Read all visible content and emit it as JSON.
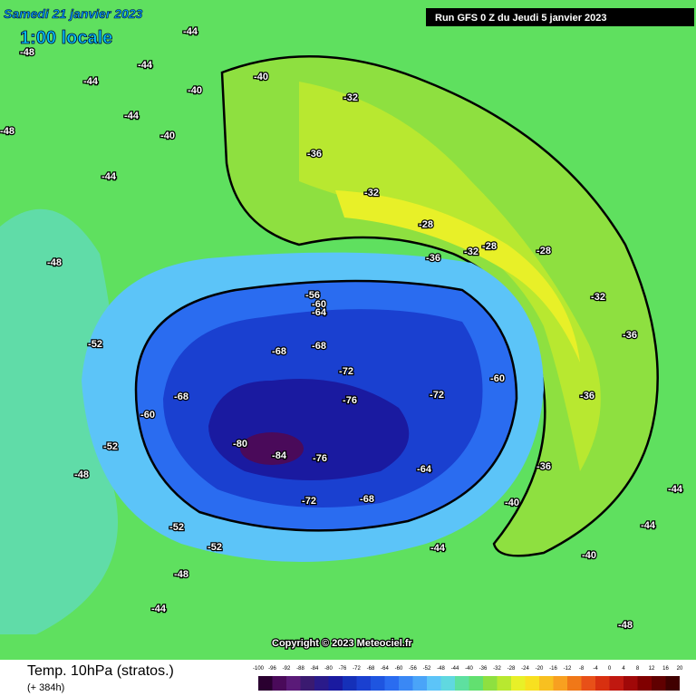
{
  "header": {
    "date": "Samedi 21 janvier 2023",
    "time": "1:00 locale",
    "run": "Run GFS 0 Z du Jeudi 5 janvier 2023"
  },
  "footer": {
    "title": "Temp. 10hPa (stratos.)",
    "lead": "(+ 384h)",
    "copyright": "Copyright © 2023 Meteociel.fr"
  },
  "legend": {
    "ticks": [
      -100,
      -96,
      -92,
      -88,
      -84,
      -80,
      -76,
      -72,
      -68,
      -64,
      -60,
      -56,
      -52,
      -48,
      -44,
      -40,
      -36,
      -32,
      -28,
      -24,
      -20,
      -16,
      -12,
      -8,
      -4,
      0,
      4,
      8,
      12,
      16,
      20
    ],
    "colors": [
      "#2a0030",
      "#4a0a5a",
      "#5a1a78",
      "#3a1a70",
      "#2a1a8a",
      "#1a1aa0",
      "#1530b8",
      "#1a40d0",
      "#1e55e0",
      "#2a6cf0",
      "#3a88f5",
      "#4aa4f8",
      "#5cc4f8",
      "#60d8e0",
      "#5ee0a0",
      "#62e070",
      "#8ee040",
      "#b8e830",
      "#e8f028",
      "#f8e020",
      "#f8c020",
      "#f8a020",
      "#f07818",
      "#e85018",
      "#d83010",
      "#c01810",
      "#a00808",
      "#800000",
      "#600000",
      "#400000"
    ]
  },
  "map_labels": [
    "-44",
    "-44",
    "-44",
    "-40",
    "-40",
    "-44",
    "-48",
    "-48",
    "-44",
    "-48",
    "-52",
    "-52",
    "-48",
    "-52",
    "-52",
    "-48",
    "-44",
    "-40",
    "-36",
    "-32",
    "-32",
    "-28",
    "-28",
    "-28",
    "-32",
    "-36",
    "-56",
    "-60",
    "-64",
    "-68",
    "-68",
    "-72",
    "-76",
    "-72",
    "-60",
    "-80",
    "-84",
    "-76",
    "-72",
    "-68",
    "-60",
    "-68",
    "-64",
    "-36",
    "-32",
    "-36",
    "-36",
    "-40",
    "-40",
    "-44",
    "-44",
    "-48",
    "-44"
  ]
}
